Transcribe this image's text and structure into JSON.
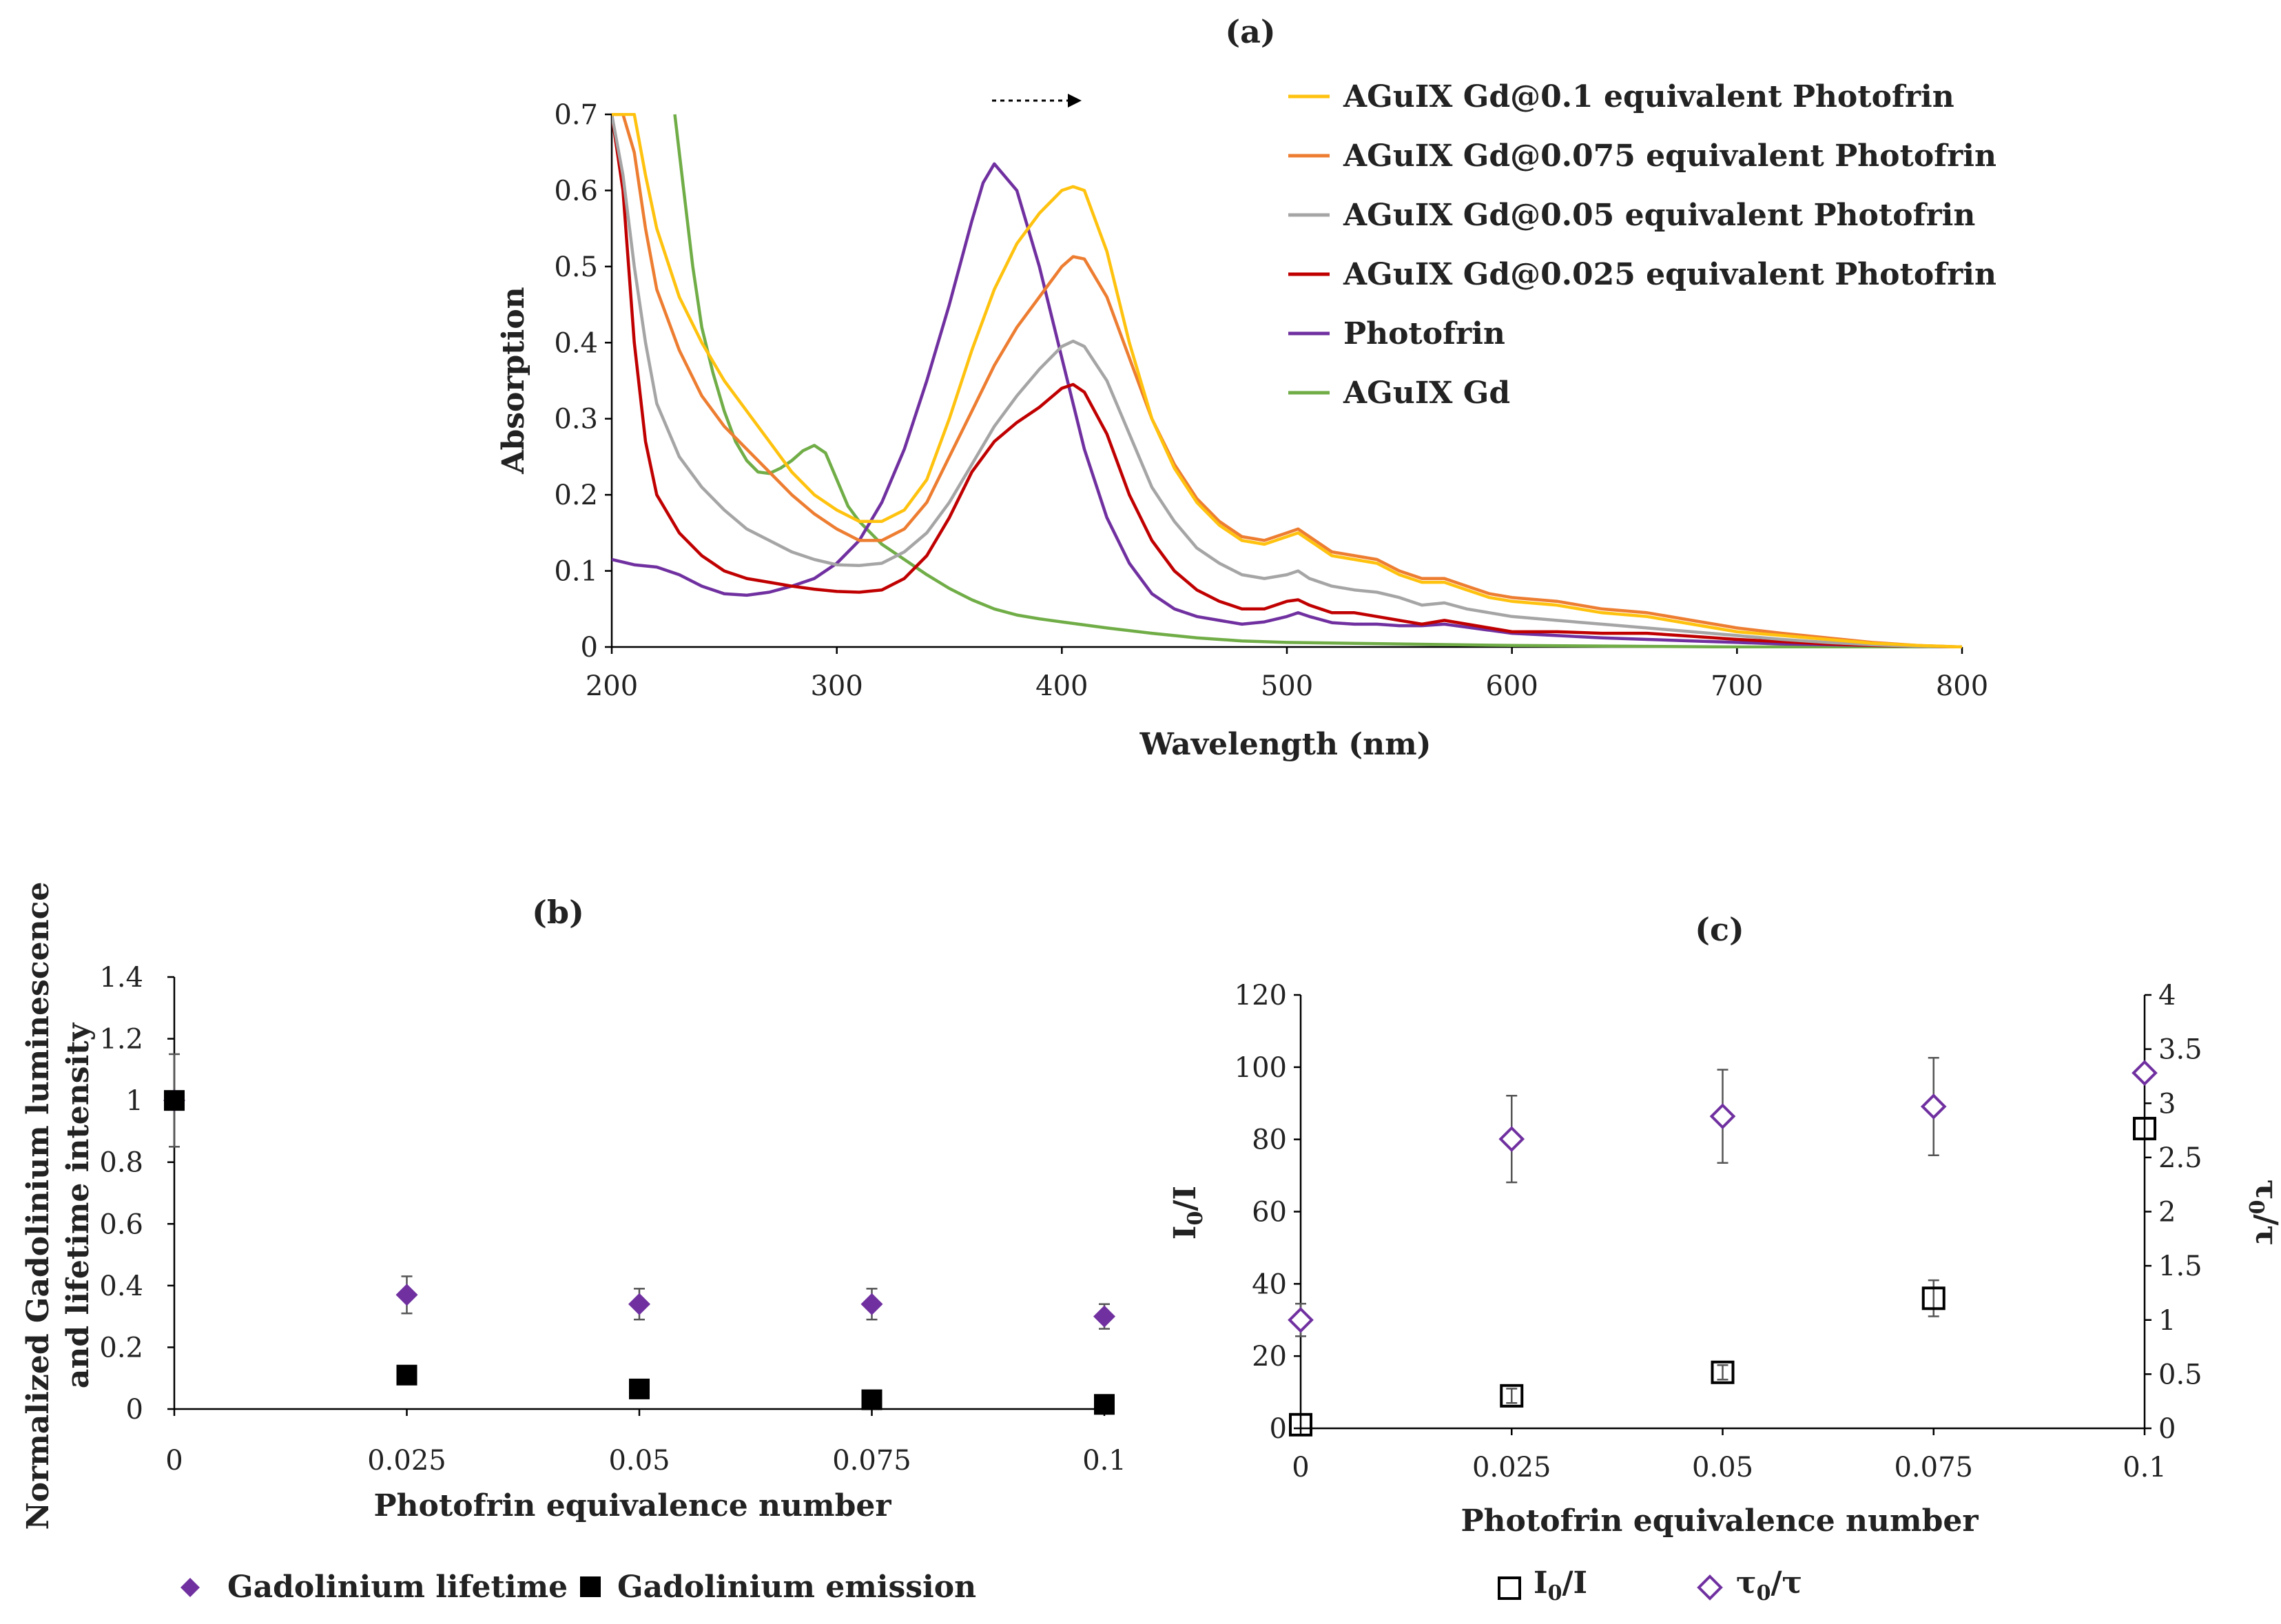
{
  "colors": {
    "gd01": "#FFC20E",
    "gd0075": "#ED7D31",
    "gd005": "#A5A5A5",
    "gd0025": "#C00000",
    "photofrin": "#7030A0",
    "aguix": "#70AD47",
    "marker_purple": "#7030A0",
    "marker_black": "#000000"
  },
  "chart_data": [
    {
      "panel": "(a)",
      "type": "line",
      "title": "(a)",
      "xlabel": "Wavelength (nm)",
      "ylabel": "Absorption",
      "xlim": [
        200,
        800
      ],
      "ylim": [
        0,
        0.7
      ],
      "x_ticks": [
        "200",
        "300",
        "400",
        "500",
        "600",
        "700",
        "800"
      ],
      "y_ticks": [
        "0",
        "0.1",
        "0.2",
        "0.3",
        "0.4",
        "0.5",
        "0.6",
        "0.7"
      ],
      "legend_position": "right",
      "series": [
        {
          "name": "AGuIX Gd@0.1 equivalent Photofrin",
          "color_key": "gd01",
          "x": [
            200,
            205,
            210,
            215,
            220,
            230,
            240,
            250,
            260,
            270,
            280,
            290,
            300,
            310,
            320,
            330,
            340,
            350,
            360,
            370,
            380,
            390,
            400,
            405,
            410,
            420,
            430,
            440,
            450,
            460,
            470,
            480,
            490,
            500,
            505,
            510,
            520,
            530,
            540,
            550,
            560,
            570,
            580,
            590,
            600,
            620,
            640,
            660,
            680,
            700,
            720,
            740,
            760,
            780,
            800
          ],
          "y": [
            0.7,
            0.7,
            0.7,
            0.62,
            0.55,
            0.46,
            0.4,
            0.35,
            0.31,
            0.27,
            0.23,
            0.2,
            0.18,
            0.165,
            0.165,
            0.18,
            0.22,
            0.3,
            0.39,
            0.47,
            0.53,
            0.57,
            0.6,
            0.605,
            0.6,
            0.52,
            0.4,
            0.3,
            0.235,
            0.19,
            0.16,
            0.14,
            0.135,
            0.145,
            0.15,
            0.14,
            0.12,
            0.115,
            0.11,
            0.095,
            0.085,
            0.085,
            0.075,
            0.065,
            0.06,
            0.055,
            0.045,
            0.04,
            0.03,
            0.02,
            0.015,
            0.01,
            0.005,
            0.002,
            0.0
          ]
        },
        {
          "name": "AGuIX Gd@0.075 equivalent Photofrin",
          "color_key": "gd0075",
          "x": [
            200,
            205,
            210,
            215,
            220,
            230,
            240,
            250,
            260,
            270,
            280,
            290,
            300,
            310,
            320,
            330,
            340,
            350,
            360,
            370,
            380,
            390,
            400,
            405,
            410,
            420,
            430,
            440,
            450,
            460,
            470,
            480,
            490,
            500,
            505,
            510,
            520,
            530,
            540,
            550,
            560,
            570,
            580,
            590,
            600,
            620,
            640,
            660,
            680,
            700,
            720,
            740,
            760,
            780,
            800
          ],
          "y": [
            0.7,
            0.7,
            0.65,
            0.55,
            0.47,
            0.39,
            0.33,
            0.29,
            0.26,
            0.23,
            0.2,
            0.175,
            0.155,
            0.14,
            0.14,
            0.155,
            0.19,
            0.25,
            0.31,
            0.37,
            0.42,
            0.46,
            0.5,
            0.513,
            0.51,
            0.46,
            0.38,
            0.3,
            0.24,
            0.195,
            0.165,
            0.145,
            0.14,
            0.15,
            0.155,
            0.145,
            0.125,
            0.12,
            0.115,
            0.1,
            0.09,
            0.09,
            0.08,
            0.07,
            0.065,
            0.06,
            0.05,
            0.045,
            0.035,
            0.025,
            0.018,
            0.012,
            0.006,
            0.002,
            0.0
          ]
        },
        {
          "name": "AGuIX Gd@0.05 equivalent Photofrin",
          "color_key": "gd005",
          "x": [
            200,
            205,
            210,
            215,
            220,
            230,
            240,
            250,
            260,
            270,
            280,
            290,
            300,
            310,
            320,
            330,
            340,
            350,
            360,
            370,
            380,
            390,
            400,
            405,
            410,
            420,
            430,
            440,
            450,
            460,
            470,
            480,
            490,
            500,
            505,
            510,
            520,
            530,
            540,
            550,
            560,
            570,
            580,
            590,
            600,
            620,
            640,
            660,
            680,
            700,
            720,
            740,
            760,
            780,
            800
          ],
          "y": [
            0.7,
            0.62,
            0.5,
            0.4,
            0.32,
            0.25,
            0.21,
            0.18,
            0.155,
            0.14,
            0.125,
            0.115,
            0.108,
            0.107,
            0.11,
            0.125,
            0.15,
            0.19,
            0.24,
            0.29,
            0.33,
            0.365,
            0.395,
            0.402,
            0.395,
            0.35,
            0.28,
            0.21,
            0.165,
            0.13,
            0.11,
            0.095,
            0.09,
            0.095,
            0.1,
            0.09,
            0.08,
            0.075,
            0.072,
            0.065,
            0.055,
            0.058,
            0.05,
            0.045,
            0.04,
            0.035,
            0.03,
            0.025,
            0.02,
            0.015,
            0.01,
            0.006,
            0.003,
            0.001,
            0.0
          ]
        },
        {
          "name": "AGuIX Gd@0.025 equivalent Photofrin",
          "color_key": "gd0025",
          "x": [
            200,
            205,
            210,
            215,
            220,
            230,
            240,
            250,
            260,
            270,
            280,
            290,
            300,
            310,
            320,
            330,
            340,
            350,
            360,
            370,
            380,
            390,
            400,
            405,
            410,
            420,
            430,
            440,
            450,
            460,
            470,
            480,
            490,
            500,
            505,
            510,
            520,
            530,
            540,
            550,
            560,
            570,
            580,
            590,
            600,
            620,
            640,
            660,
            680,
            700,
            720,
            740,
            760,
            780,
            800
          ],
          "y": [
            0.7,
            0.6,
            0.4,
            0.27,
            0.2,
            0.15,
            0.12,
            0.1,
            0.09,
            0.085,
            0.08,
            0.076,
            0.073,
            0.072,
            0.075,
            0.09,
            0.12,
            0.17,
            0.23,
            0.27,
            0.295,
            0.315,
            0.34,
            0.345,
            0.335,
            0.28,
            0.2,
            0.14,
            0.1,
            0.075,
            0.06,
            0.05,
            0.05,
            0.06,
            0.062,
            0.055,
            0.045,
            0.045,
            0.04,
            0.035,
            0.03,
            0.035,
            0.03,
            0.025,
            0.02,
            0.02,
            0.018,
            0.018,
            0.014,
            0.01,
            0.007,
            0.004,
            0.002,
            0.001,
            0.0
          ]
        },
        {
          "name": "Photofrin",
          "color_key": "photofrin",
          "x": [
            200,
            210,
            220,
            230,
            240,
            250,
            260,
            270,
            280,
            290,
            300,
            310,
            320,
            330,
            340,
            350,
            360,
            365,
            370,
            380,
            390,
            400,
            410,
            420,
            430,
            440,
            450,
            460,
            470,
            480,
            490,
            500,
            505,
            510,
            520,
            530,
            540,
            550,
            560,
            570,
            580,
            590,
            600,
            620,
            640,
            660,
            680,
            700,
            720,
            740,
            760,
            780,
            800
          ],
          "y": [
            0.115,
            0.108,
            0.105,
            0.095,
            0.08,
            0.07,
            0.068,
            0.072,
            0.08,
            0.09,
            0.11,
            0.14,
            0.19,
            0.26,
            0.35,
            0.45,
            0.56,
            0.61,
            0.635,
            0.6,
            0.5,
            0.38,
            0.26,
            0.17,
            0.11,
            0.07,
            0.05,
            0.04,
            0.035,
            0.03,
            0.033,
            0.04,
            0.045,
            0.04,
            0.032,
            0.03,
            0.03,
            0.028,
            0.028,
            0.03,
            0.026,
            0.022,
            0.018,
            0.015,
            0.012,
            0.01,
            0.008,
            0.006,
            0.004,
            0.003,
            0.002,
            0.001,
            0.0
          ]
        },
        {
          "name": "AGuIX Gd",
          "color_key": "aguix",
          "x": [
            228,
            232,
            236,
            240,
            245,
            250,
            255,
            260,
            265,
            270,
            275,
            280,
            285,
            290,
            295,
            300,
            305,
            310,
            315,
            320,
            330,
            340,
            350,
            360,
            370,
            380,
            390,
            400,
            420,
            440,
            460,
            480,
            500,
            550,
            600,
            650,
            700,
            750,
            800
          ],
          "y": [
            0.7,
            0.6,
            0.5,
            0.42,
            0.36,
            0.31,
            0.27,
            0.245,
            0.23,
            0.228,
            0.235,
            0.245,
            0.258,
            0.265,
            0.255,
            0.22,
            0.185,
            0.165,
            0.15,
            0.135,
            0.115,
            0.095,
            0.077,
            0.062,
            0.05,
            0.042,
            0.037,
            0.033,
            0.025,
            0.018,
            0.012,
            0.008,
            0.006,
            0.004,
            0.002,
            0.001,
            0.0,
            0.0,
            0.0
          ]
        }
      ]
    },
    {
      "panel": "(b)",
      "type": "scatter",
      "title": "(b)",
      "xlabel": "Photofrin equivalence number",
      "ylabel": "Normalized Gadolinium luminescence and lifetime intensity",
      "categories": [
        "0",
        "0.025",
        "0.05",
        "0.075",
        "0.1"
      ],
      "ylim": [
        0,
        1.4
      ],
      "y_ticks": [
        "0",
        "0.2",
        "0.4",
        "0.6",
        "0.8",
        "1",
        "1.2",
        "1.4"
      ],
      "legend_position": "bottom",
      "series": [
        {
          "name": "Gadolinium lifetime",
          "marker": "diamond",
          "color_key": "marker_purple",
          "values": [
            1.0,
            0.37,
            0.34,
            0.34,
            0.3
          ],
          "errors": [
            0.15,
            0.06,
            0.05,
            0.05,
            0.04
          ]
        },
        {
          "name": "Gadolinium emission",
          "marker": "square",
          "color_key": "marker_black",
          "values": [
            1.0,
            0.11,
            0.065,
            0.03,
            0.015
          ],
          "errors": [
            0.0,
            0.0,
            0.0,
            0.0,
            0.0
          ]
        }
      ]
    },
    {
      "panel": "(c)",
      "type": "scatter",
      "title": "(c)",
      "xlabel": "Photofrin equivalence number",
      "ylabel_left": "I0/I",
      "ylabel_right": "τ0/τ",
      "categories": [
        "0",
        "0.025",
        "0.05",
        "0.075",
        "0.1"
      ],
      "ylim_left": [
        0,
        120
      ],
      "ylim_right": [
        0,
        4
      ],
      "y_ticks_left": [
        "0",
        "20",
        "40",
        "60",
        "80",
        "100",
        "120"
      ],
      "y_ticks_right": [
        "0",
        "0.5",
        "1",
        "1.5",
        "2",
        "2.5",
        "3",
        "3.5",
        "4"
      ],
      "legend_position": "bottom",
      "series": [
        {
          "name": "I0/I",
          "axis": "left",
          "marker": "open-square",
          "color_key": "marker_black",
          "values": [
            1,
            9,
            15.5,
            36,
            83
          ],
          "errors": [
            0,
            2,
            2,
            5,
            0
          ]
        },
        {
          "name": "τ0/τ",
          "axis": "right",
          "marker": "open-diamond",
          "color_key": "marker_purple",
          "values": [
            1.0,
            2.67,
            2.88,
            2.97,
            3.28
          ],
          "errors": [
            0.15,
            0.4,
            0.43,
            0.45,
            0.0
          ]
        }
      ]
    }
  ],
  "annotations": {
    "arrow": "dotted-right-arrow"
  }
}
